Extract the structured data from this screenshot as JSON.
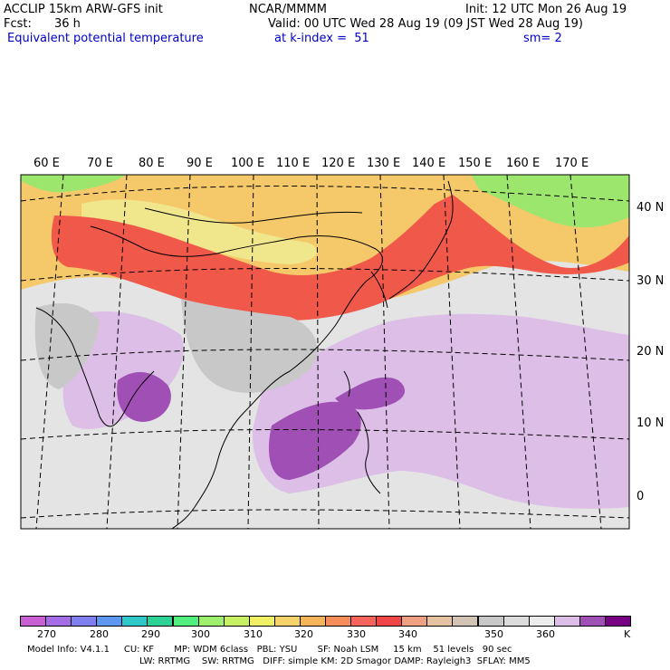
{
  "header": {
    "model": "ACCLIP 15km ARW-GFS init",
    "org": "NCAR/MMMM",
    "init": "Init: 12 UTC Mon 26 Aug 19",
    "fcst_label": "Fcst:",
    "fcst_value": "36 h",
    "valid": "Valid: 00 UTC Wed 28 Aug 19 (09 JST Wed 28 Aug 19)",
    "field": "Equivalent potential temperature",
    "level": "at k-index =  51",
    "smoothing": "sm= 2"
  },
  "map": {
    "lon_labels": [
      "60 E",
      "70 E",
      "80 E",
      "90 E",
      "100 E",
      "110 E",
      "120 E",
      "130 E",
      "140 E",
      "150 E",
      "160 E",
      "170 E"
    ],
    "lat_labels": [
      "40 N",
      "30 N",
      "20 N",
      "10 N",
      "0"
    ]
  },
  "colorbar": {
    "colors": [
      "#c85fd2",
      "#a46de5",
      "#7f7fef",
      "#5d98f0",
      "#2ec8c8",
      "#2ed296",
      "#50ef7e",
      "#9cf06e",
      "#c8f064",
      "#f0f064",
      "#f5d26a",
      "#f5b45a",
      "#f58c5a",
      "#f5645a",
      "#f04646",
      "#f0a082",
      "#e6c3a0",
      "#d2c3b4",
      "#c8c8c8",
      "#dcdcdc",
      "#ececec",
      "#dcbee6",
      "#a050b4",
      "#780082"
    ],
    "labels": [
      "270",
      "280",
      "290",
      "300",
      "310",
      "320",
      "330",
      "340",
      "350",
      "360"
    ],
    "unit": "K"
  },
  "footer": {
    "line1": "Model Info: V4.1.1     CU: KF       MP: WDM 6class   PBL: YSU       SF: Noah LSM     15 km    51 levels   90 sec",
    "line2": "LW: RRTMG    SW: RRTMG   DIFF: simple KM: 2D Smagor DAMP: Rayleigh3  SFLAY: MM5"
  }
}
